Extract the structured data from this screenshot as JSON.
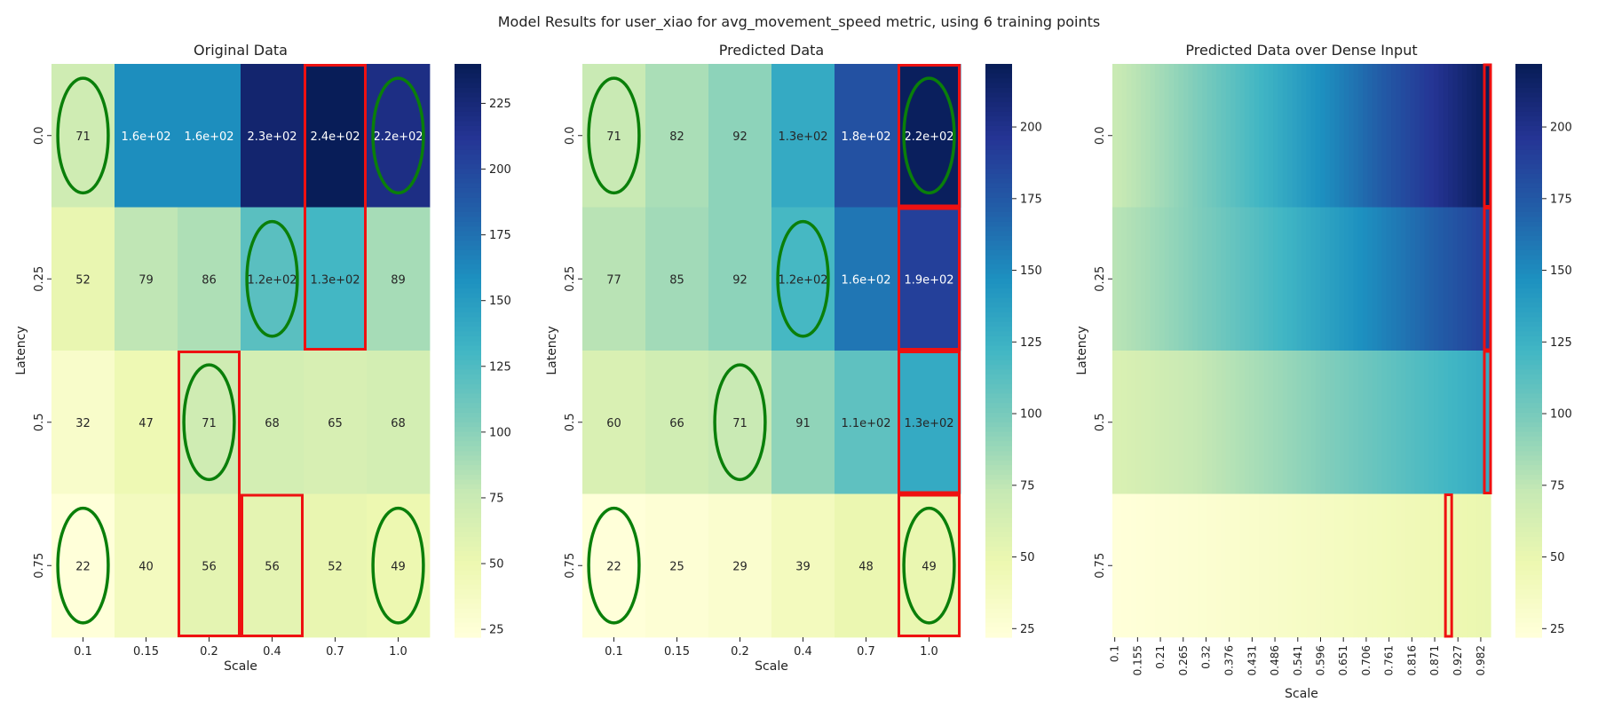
{
  "figure_title": "Model Results for user_xiao for avg_movement_speed metric, using 6 training points",
  "colormap": "YlGnBu",
  "colormap_stops": [
    "#ffffd9",
    "#edf8b1",
    "#c7e9b4",
    "#7fcdbb",
    "#41b6c4",
    "#1d91c0",
    "#225ea8",
    "#253494",
    "#081d58"
  ],
  "highlight_colors": {
    "training_ellipse": "#0a7f0a",
    "error_box": "#ee1111"
  },
  "chart_data": [
    {
      "type": "heatmap",
      "title": "Original Data",
      "xlabel": "Scale",
      "ylabel": "Latency",
      "x_ticks": [
        "0.1",
        "0.15",
        "0.2",
        "0.4",
        "0.7",
        "1.0"
      ],
      "y_ticks": [
        "0.0",
        "0.25",
        "0.5",
        "0.75"
      ],
      "values": [
        [
          71,
          160,
          160,
          230,
          240,
          220
        ],
        [
          52,
          79,
          86,
          120,
          130,
          89
        ],
        [
          32,
          47,
          71,
          68,
          65,
          68
        ],
        [
          22,
          40,
          56,
          56,
          52,
          49
        ]
      ],
      "annotations": [
        [
          "71",
          "1.6e+02",
          "1.6e+02",
          "2.3e+02",
          "2.4e+02",
          "2.2e+02"
        ],
        [
          "52",
          "79",
          "86",
          "1.2e+02",
          "1.3e+02",
          "89"
        ],
        [
          "32",
          "47",
          "71",
          "68",
          "65",
          "68"
        ],
        [
          "22",
          "40",
          "56",
          "56",
          "52",
          "49"
        ]
      ],
      "vmin": 22,
      "vmax": 240,
      "colorbar_ticks": [
        25,
        50,
        75,
        100,
        125,
        150,
        175,
        200,
        225
      ],
      "training_points": [
        [
          0,
          0
        ],
        [
          0,
          5
        ],
        [
          1,
          3
        ],
        [
          2,
          2
        ],
        [
          3,
          0
        ],
        [
          3,
          5
        ]
      ],
      "max_highlight_boxes": [
        [
          0,
          4,
          2,
          1
        ],
        [
          2,
          2,
          2,
          1
        ],
        [
          3,
          3,
          1,
          1
        ]
      ]
    },
    {
      "type": "heatmap",
      "title": "Predicted Data",
      "xlabel": "Scale",
      "ylabel": "Latency",
      "x_ticks": [
        "0.1",
        "0.15",
        "0.2",
        "0.4",
        "0.7",
        "1.0"
      ],
      "y_ticks": [
        "0.0",
        "0.25",
        "0.5",
        "0.75"
      ],
      "values": [
        [
          71,
          82,
          92,
          130,
          180,
          220
        ],
        [
          77,
          85,
          92,
          120,
          160,
          190
        ],
        [
          60,
          66,
          71,
          91,
          110,
          130
        ],
        [
          22,
          25,
          29,
          39,
          48,
          49
        ]
      ],
      "annotations": [
        [
          "71",
          "82",
          "92",
          "1.3e+02",
          "1.8e+02",
          "2.2e+02"
        ],
        [
          "77",
          "85",
          "92",
          "1.2e+02",
          "1.6e+02",
          "1.9e+02"
        ],
        [
          "60",
          "66",
          "71",
          "91",
          "1.1e+02",
          "1.3e+02"
        ],
        [
          "22",
          "25",
          "29",
          "39",
          "48",
          "49"
        ]
      ],
      "vmin": 22,
      "vmax": 222,
      "colorbar_ticks": [
        25,
        50,
        75,
        100,
        125,
        150,
        175,
        200
      ],
      "training_points": [
        [
          0,
          0
        ],
        [
          0,
          5
        ],
        [
          1,
          3
        ],
        [
          2,
          2
        ],
        [
          3,
          0
        ],
        [
          3,
          5
        ]
      ],
      "max_highlight_boxes": [
        [
          0,
          5,
          1,
          1
        ],
        [
          1,
          5,
          1,
          1
        ],
        [
          2,
          5,
          1,
          1
        ],
        [
          3,
          5,
          1,
          1
        ]
      ]
    },
    {
      "type": "heatmap",
      "title": "Predicted Data over Dense Input",
      "xlabel": "Scale",
      "ylabel": "Latency",
      "x_ticks": [
        "0.1",
        "0.155",
        "0.21",
        "0.265",
        "0.32",
        "0.376",
        "0.431",
        "0.486",
        "0.541",
        "0.596",
        "0.651",
        "0.706",
        "0.761",
        "0.816",
        "0.871",
        "0.927",
        "0.982"
      ],
      "y_ticks": [
        "0.0",
        "0.25",
        "0.5",
        "0.75"
      ],
      "x_range": [
        0.1,
        1.0
      ],
      "row_profiles": [
        {
          "start": 71,
          "end": 222
        },
        {
          "start": 77,
          "end": 190
        },
        {
          "start": 60,
          "end": 130
        },
        {
          "start": 22,
          "end": 49
        }
      ],
      "vmin": 22,
      "vmax": 222,
      "colorbar_ticks": [
        25,
        50,
        75,
        100,
        125,
        150,
        175,
        200
      ],
      "row_max_x": [
        1.0,
        1.0,
        1.0,
        0.9
      ]
    }
  ]
}
